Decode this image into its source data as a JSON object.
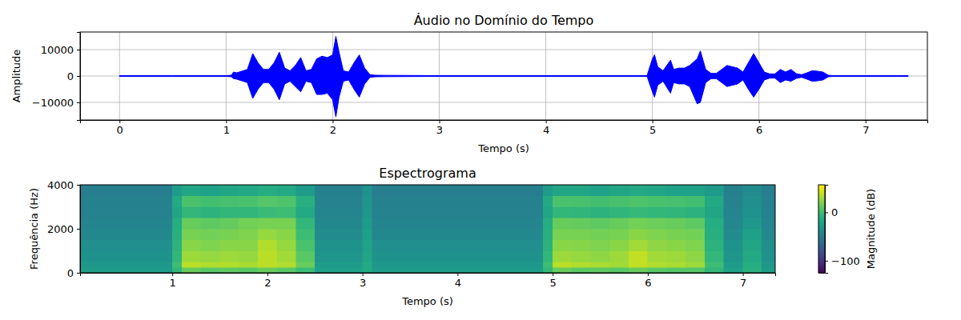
{
  "chart_data": [
    {
      "type": "area",
      "title": "Áudio no Domínio do Tempo",
      "x_label": "Tempo (s)",
      "y_label": "Amplitude",
      "color": "#0000ff",
      "grid": true,
      "xlim": [
        -0.37,
        7.58
      ],
      "xticks": [
        0,
        1,
        2,
        3,
        4,
        5,
        6,
        7
      ],
      "ylim": [
        -16670,
        16670
      ],
      "yticks": [
        {
          "value": -10000,
          "label": "−10000"
        },
        0,
        10000
      ],
      "x": [
        0,
        0.5,
        1.0,
        1.05,
        1.07,
        1.1,
        1.2,
        1.25,
        1.3,
        1.35,
        1.4,
        1.45,
        1.5,
        1.55,
        1.6,
        1.65,
        1.7,
        1.75,
        1.8,
        1.85,
        1.9,
        1.95,
        2.0,
        2.03,
        2.06,
        2.1,
        2.15,
        2.2,
        2.25,
        2.3,
        2.35,
        2.4,
        2.5,
        3.0,
        4.95,
        5.0,
        5.02,
        5.05,
        5.1,
        5.17,
        5.2,
        5.25,
        5.3,
        5.35,
        5.42,
        5.45,
        5.5,
        5.55,
        5.6,
        5.65,
        5.7,
        5.75,
        5.8,
        5.85,
        5.9,
        5.95,
        6.0,
        6.05,
        6.1,
        6.15,
        6.2,
        6.25,
        6.3,
        6.35,
        6.4,
        6.45,
        6.5,
        6.55,
        6.6,
        6.65,
        6.7,
        7.0,
        7.4
      ],
      "values": [
        150,
        150,
        150,
        300,
        1500,
        1200,
        2500,
        8500,
        5000,
        2500,
        2500,
        5000,
        9000,
        3000,
        2000,
        4000,
        7000,
        2000,
        2500,
        6500,
        7500,
        7000,
        8000,
        15000,
        9000,
        2000,
        1500,
        5000,
        8000,
        3000,
        500,
        300,
        250,
        150,
        150,
        6500,
        8000,
        3500,
        2000,
        6000,
        2500,
        3000,
        3000,
        4000,
        6500,
        9500,
        2500,
        1000,
        1000,
        2500,
        4000,
        3500,
        3000,
        1500,
        5000,
        8500,
        5000,
        1500,
        800,
        800,
        2500,
        1500,
        2500,
        900,
        500,
        1200,
        2000,
        1800,
        1500,
        300,
        150,
        150,
        150
      ],
      "min_values": [
        -150,
        -150,
        -150,
        -300,
        -1000,
        -1200,
        -2500,
        -8500,
        -5000,
        -2500,
        -2500,
        -5000,
        -9000,
        -3000,
        -2000,
        -4000,
        -6000,
        -2000,
        -2500,
        -7000,
        -7000,
        -6500,
        -9000,
        -15500,
        -8000,
        -2000,
        -1500,
        -5000,
        -8000,
        -3000,
        -500,
        -300,
        -250,
        -150,
        -150,
        -6000,
        -8000,
        -3500,
        -2000,
        -6500,
        -2500,
        -3000,
        -3000,
        -4000,
        -10500,
        -10000,
        -2500,
        -1000,
        -1000,
        -2500,
        -4000,
        -3500,
        -3000,
        -1500,
        -5000,
        -8000,
        -5000,
        -1500,
        -800,
        -800,
        -2500,
        -1500,
        -2000,
        -900,
        -500,
        -1200,
        -2000,
        -1800,
        -1500,
        -300,
        -150,
        -150,
        -150
      ]
    },
    {
      "type": "heatmap",
      "title": "Espectrograma",
      "x_label": "Tempo (s)",
      "y_label": "Frequência (Hz)",
      "xlim": [
        0.03,
        7.34
      ],
      "xticks": [
        1,
        2,
        3,
        4,
        5,
        6,
        7
      ],
      "ylim": [
        0,
        4000
      ],
      "yticks": [
        0,
        2000,
        4000
      ],
      "x_edges": [
        0.03,
        0.5,
        1.0,
        1.1,
        1.3,
        1.5,
        1.7,
        1.9,
        2.1,
        2.3,
        2.5,
        3.0,
        3.1,
        4.0,
        4.9,
        5.0,
        5.2,
        5.4,
        5.6,
        5.8,
        6.0,
        6.2,
        6.4,
        6.6,
        6.8,
        7.0,
        7.2,
        7.34
      ],
      "y_edges": [
        0,
        250,
        500,
        1000,
        1500,
        2000,
        2500,
        3000,
        3500,
        4000
      ],
      "cells": [
        [
          -25,
          -25,
          -5,
          15,
          10,
          12,
          10,
          15,
          10,
          0,
          -22,
          -15,
          -25,
          -25,
          -5,
          15,
          10,
          12,
          10,
          15,
          10,
          8,
          8,
          -5,
          -22,
          -10,
          -25
        ],
        [
          -28,
          -28,
          0,
          38,
          35,
          36,
          34,
          38,
          35,
          15,
          -25,
          -15,
          -28,
          -28,
          0,
          38,
          35,
          34,
          32,
          40,
          35,
          34,
          30,
          0,
          -26,
          -12,
          -28
        ],
        [
          -32,
          -32,
          -5,
          30,
          28,
          30,
          28,
          38,
          32,
          10,
          -30,
          -18,
          -32,
          -32,
          -5,
          30,
          28,
          26,
          30,
          40,
          32,
          30,
          26,
          -5,
          -30,
          -15,
          -32
        ],
        [
          -35,
          -35,
          -8,
          25,
          22,
          25,
          25,
          36,
          28,
          5,
          -33,
          -20,
          -35,
          -35,
          -8,
          25,
          24,
          22,
          25,
          32,
          26,
          25,
          22,
          -8,
          -33,
          -18,
          -35
        ],
        [
          -40,
          -40,
          -10,
          20,
          18,
          20,
          22,
          28,
          25,
          0,
          -38,
          -22,
          -40,
          -40,
          -10,
          20,
          20,
          18,
          20,
          25,
          22,
          20,
          18,
          -10,
          -38,
          -22,
          -40
        ],
        [
          -42,
          -42,
          -12,
          15,
          12,
          14,
          18,
          20,
          20,
          -5,
          -40,
          -25,
          -42,
          -42,
          -12,
          15,
          14,
          12,
          15,
          18,
          16,
          15,
          12,
          -12,
          -40,
          -28,
          -42
        ],
        [
          -44,
          -44,
          -18,
          -5,
          -8,
          -5,
          -5,
          -2,
          0,
          -15,
          -42,
          -28,
          -44,
          -44,
          -18,
          -5,
          -6,
          -8,
          -6,
          -3,
          -5,
          -6,
          -8,
          -18,
          -42,
          -32,
          -44
        ],
        [
          -46,
          -46,
          -15,
          5,
          2,
          3,
          5,
          8,
          6,
          -10,
          -44,
          -30,
          -46,
          -46,
          -15,
          5,
          4,
          2,
          4,
          6,
          4,
          3,
          2,
          -15,
          -44,
          -35,
          -46
        ],
        [
          -48,
          -48,
          -25,
          -18,
          -20,
          -18,
          -15,
          -12,
          -15,
          -25,
          -46,
          -32,
          -48,
          -48,
          -25,
          -18,
          -18,
          -20,
          -18,
          -15,
          -18,
          -20,
          -20,
          -25,
          -46,
          -38,
          -48
        ]
      ],
      "color_range": [
        -125,
        57
      ],
      "color_ticks": [
        {
          "value": -100,
          "label": "−100"
        },
        0
      ],
      "color_label": "Magnitude (dB)"
    }
  ]
}
